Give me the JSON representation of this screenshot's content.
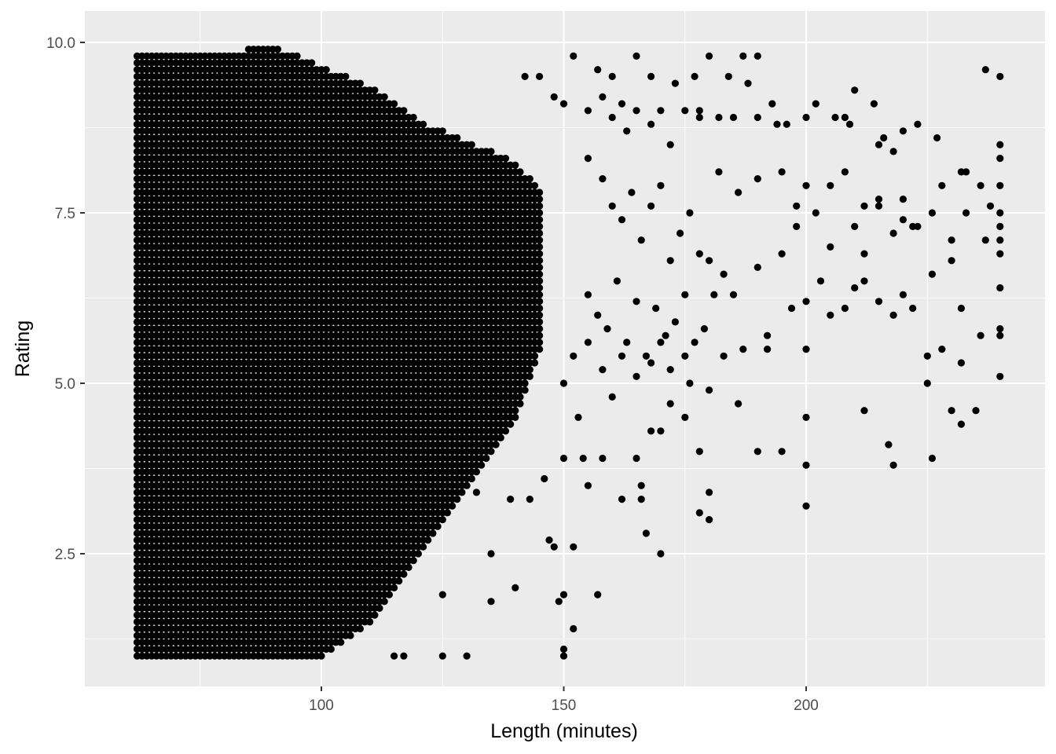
{
  "chart_data": {
    "type": "scatter",
    "title": "",
    "xlabel": "Length (minutes)",
    "ylabel": "Rating",
    "xlim": [
      60,
      240
    ],
    "ylim": [
      1,
      10
    ],
    "x_ticks": [
      100,
      150,
      200
    ],
    "x_tick_labels": [
      "100",
      "150",
      "200"
    ],
    "y_ticks": [
      2.5,
      5.0,
      7.5,
      10.0
    ],
    "y_tick_labels": [
      "2.5",
      "5.0",
      "7.5",
      "10.0"
    ],
    "grid": true,
    "legend": "none",
    "colors": {
      "panel": "#ebebeb",
      "grid": "#ffffff",
      "points": "#000000"
    },
    "dense_regions": [
      {
        "x": 62,
        "y_range": [
          1,
          9.8
        ]
      },
      {
        "x": 70,
        "y_range": [
          1,
          9.8
        ]
      },
      {
        "x": 80,
        "y_range": [
          1,
          9.8
        ]
      },
      {
        "x": 90,
        "y_range": [
          1,
          9.9
        ]
      },
      {
        "x": 100,
        "y_range": [
          1,
          9.6
        ]
      },
      {
        "x": 110,
        "y_range": [
          1.5,
          9.3
        ]
      },
      {
        "x": 120,
        "y_range": [
          2.5,
          8.8
        ]
      },
      {
        "x": 130,
        "y_range": [
          3.5,
          8.5
        ]
      },
      {
        "x": 140,
        "y_range": [
          4.5,
          8.2
        ]
      },
      {
        "x": 145,
        "y_range": [
          5.5,
          7.8
        ]
      }
    ],
    "points": [
      [
        150,
        1.1
      ],
      [
        150,
        1.0
      ],
      [
        152,
        1.4
      ],
      [
        125,
        1.0
      ],
      [
        130,
        1.0
      ],
      [
        115,
        1.0
      ],
      [
        117,
        1.0
      ],
      [
        125,
        1.9
      ],
      [
        135,
        1.8
      ],
      [
        140,
        2.0
      ],
      [
        149,
        1.8
      ],
      [
        150,
        1.9
      ],
      [
        157,
        1.9
      ],
      [
        135,
        2.5
      ],
      [
        147,
        2.7
      ],
      [
        148,
        2.6
      ],
      [
        152,
        2.6
      ],
      [
        167,
        2.8
      ],
      [
        170,
        2.5
      ],
      [
        132,
        3.4
      ],
      [
        139,
        3.3
      ],
      [
        143,
        3.3
      ],
      [
        146,
        3.6
      ],
      [
        155,
        3.5
      ],
      [
        162,
        3.3
      ],
      [
        166,
        3.5
      ],
      [
        166,
        3.3
      ],
      [
        178,
        3.1
      ],
      [
        180,
        3.4
      ],
      [
        180,
        3.0
      ],
      [
        200,
        3.2
      ],
      [
        150,
        3.9
      ],
      [
        154,
        3.9
      ],
      [
        158,
        3.9
      ],
      [
        165,
        3.9
      ],
      [
        168,
        4.3
      ],
      [
        170,
        4.3
      ],
      [
        175,
        4.5
      ],
      [
        178,
        4.0
      ],
      [
        190,
        4.0
      ],
      [
        195,
        4.0
      ],
      [
        200,
        3.8
      ],
      [
        200,
        4.5
      ],
      [
        212,
        4.6
      ],
      [
        217,
        4.1
      ],
      [
        218,
        3.8
      ],
      [
        226,
        3.9
      ],
      [
        230,
        4.6
      ],
      [
        232,
        4.4
      ],
      [
        235,
        4.6
      ],
      [
        150,
        5.0
      ],
      [
        153,
        4.5
      ],
      [
        160,
        4.8
      ],
      [
        172,
        4.7
      ],
      [
        180,
        4.9
      ],
      [
        186,
        4.7
      ],
      [
        175,
        5.4
      ],
      [
        183,
        5.4
      ],
      [
        187,
        5.5
      ],
      [
        192,
        5.5
      ],
      [
        200,
        5.5
      ],
      [
        225,
        5.4
      ],
      [
        225,
        5.0
      ],
      [
        228,
        5.5
      ],
      [
        232,
        5.3
      ],
      [
        236,
        5.7
      ],
      [
        240,
        5.1
      ],
      [
        240,
        5.7
      ],
      [
        240,
        5.8
      ],
      [
        192,
        5.7
      ],
      [
        197,
        6.1
      ],
      [
        200,
        6.2
      ],
      [
        203,
        6.5
      ],
      [
        205,
        6.0
      ],
      [
        208,
        6.1
      ],
      [
        210,
        6.4
      ],
      [
        212,
        6.5
      ],
      [
        215,
        6.2
      ],
      [
        218,
        6.0
      ],
      [
        220,
        6.3
      ],
      [
        222,
        6.1
      ],
      [
        226,
        6.6
      ],
      [
        230,
        6.8
      ],
      [
        232,
        6.1
      ],
      [
        240,
        6.4
      ],
      [
        240,
        6.9
      ],
      [
        180,
        6.8
      ],
      [
        185,
        6.3
      ],
      [
        190,
        6.7
      ],
      [
        195,
        6.9
      ],
      [
        198,
        7.3
      ],
      [
        202,
        7.5
      ],
      [
        205,
        7.0
      ],
      [
        210,
        7.3
      ],
      [
        212,
        6.9
      ],
      [
        215,
        7.7
      ],
      [
        218,
        7.2
      ],
      [
        220,
        7.4
      ],
      [
        223,
        7.3
      ],
      [
        226,
        7.5
      ],
      [
        230,
        7.1
      ],
      [
        233,
        7.5
      ],
      [
        237,
        7.1
      ],
      [
        240,
        7.5
      ],
      [
        240,
        7.3
      ],
      [
        240,
        7.9
      ],
      [
        182,
        8.1
      ],
      [
        186,
        7.8
      ],
      [
        190,
        8.0
      ],
      [
        195,
        8.1
      ],
      [
        198,
        7.6
      ],
      [
        200,
        7.9
      ],
      [
        205,
        7.9
      ],
      [
        208,
        8.1
      ],
      [
        212,
        7.6
      ],
      [
        215,
        7.6
      ],
      [
        220,
        7.7
      ],
      [
        222,
        7.3
      ],
      [
        228,
        7.9
      ],
      [
        232,
        8.1
      ],
      [
        236,
        7.9
      ],
      [
        240,
        8.3
      ],
      [
        240,
        8.5
      ],
      [
        160,
        8.9
      ],
      [
        163,
        8.7
      ],
      [
        168,
        8.8
      ],
      [
        172,
        8.5
      ],
      [
        178,
        8.9
      ],
      [
        185,
        8.9
      ],
      [
        190,
        8.9
      ],
      [
        194,
        8.8
      ],
      [
        200,
        8.9
      ],
      [
        202,
        9.1
      ],
      [
        206,
        8.9
      ],
      [
        209,
        8.8
      ],
      [
        215,
        8.5
      ],
      [
        218,
        8.4
      ],
      [
        220,
        8.7
      ],
      [
        223,
        8.8
      ],
      [
        227,
        8.6
      ],
      [
        233,
        8.1
      ],
      [
        238,
        7.6
      ],
      [
        240,
        7.1
      ],
      [
        152,
        9.8
      ],
      [
        157,
        9.6
      ],
      [
        160,
        9.5
      ],
      [
        165,
        9.8
      ],
      [
        168,
        9.5
      ],
      [
        173,
        9.4
      ],
      [
        177,
        9.5
      ],
      [
        180,
        9.8
      ],
      [
        184,
        9.5
      ],
      [
        187,
        9.8
      ],
      [
        190,
        9.8
      ],
      [
        210,
        9.3
      ],
      [
        237,
        9.6
      ],
      [
        240,
        9.5
      ],
      [
        142,
        9.5
      ],
      [
        145,
        9.5
      ],
      [
        148,
        9.2
      ],
      [
        150,
        9.1
      ],
      [
        155,
        9.0
      ],
      [
        158,
        9.2
      ],
      [
        162,
        9.1
      ],
      [
        165,
        9.0
      ],
      [
        170,
        9.0
      ],
      [
        175,
        9.0
      ],
      [
        178,
        9.0
      ],
      [
        182,
        8.9
      ],
      [
        188,
        9.4
      ],
      [
        193,
        9.1
      ],
      [
        196,
        8.8
      ],
      [
        208,
        8.9
      ],
      [
        214,
        9.1
      ],
      [
        216,
        8.6
      ],
      [
        155,
        8.3
      ],
      [
        158,
        8.0
      ],
      [
        160,
        7.6
      ],
      [
        162,
        7.4
      ],
      [
        164,
        7.8
      ],
      [
        166,
        7.1
      ],
      [
        168,
        7.6
      ],
      [
        170,
        7.9
      ],
      [
        172,
        6.8
      ],
      [
        174,
        7.2
      ],
      [
        176,
        7.5
      ],
      [
        178,
        6.9
      ],
      [
        155,
        6.3
      ],
      [
        157,
        6.0
      ],
      [
        159,
        5.8
      ],
      [
        161,
        6.5
      ],
      [
        163,
        5.6
      ],
      [
        165,
        6.2
      ],
      [
        167,
        5.4
      ],
      [
        169,
        6.1
      ],
      [
        171,
        5.7
      ],
      [
        173,
        5.9
      ],
      [
        175,
        6.3
      ],
      [
        177,
        5.6
      ],
      [
        152,
        5.4
      ],
      [
        155,
        5.6
      ],
      [
        158,
        5.2
      ],
      [
        162,
        5.4
      ],
      [
        165,
        5.1
      ],
      [
        168,
        5.3
      ],
      [
        170,
        5.6
      ],
      [
        172,
        5.2
      ],
      [
        176,
        5.0
      ],
      [
        179,
        5.8
      ],
      [
        181,
        6.3
      ],
      [
        183,
        6.6
      ]
    ]
  }
}
